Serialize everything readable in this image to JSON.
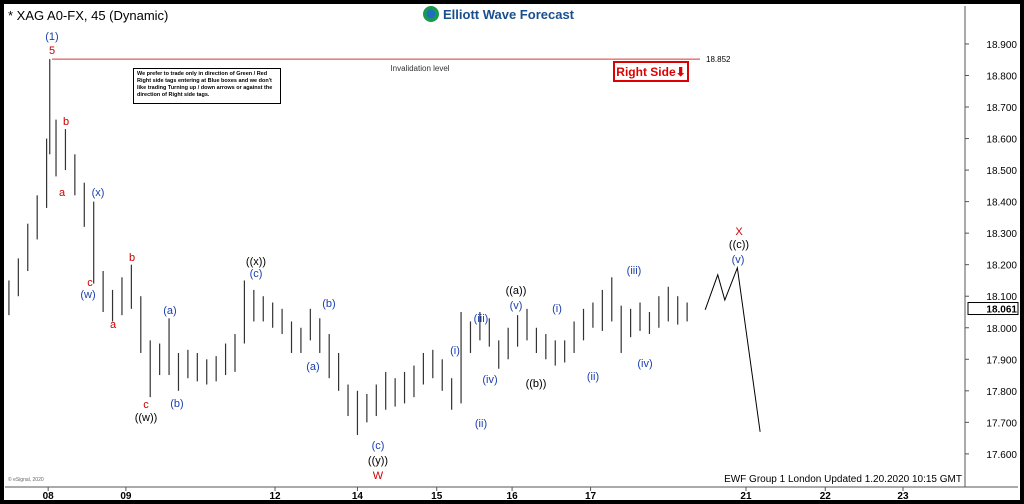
{
  "chart_data": {
    "type": "hilo",
    "title": "* XAG A0-FX, 45 (Dynamic)",
    "brand": "Elliott Wave Forecast",
    "footer": "EWF Group 1 London Updated 1.20.2020 10:15 GMT",
    "copyright": "© eSignal, 2020",
    "note": "We prefer to trade only in direction of Green / Red Right side tags entering at Blue boxes and we don't like trading Turning up / down arrows or against the direction of Right side tags.",
    "right_side_tag": "Right Side⬇",
    "invalidation": {
      "label": "Invalidation level",
      "value": 18.852,
      "value_label": "18.852"
    },
    "last_price": {
      "value": 18.061,
      "label": "18.061"
    },
    "xlim": [
      0.45,
      12.68
    ],
    "ylim": [
      17.495,
      19.014
    ],
    "xticks": [
      {
        "value": 1.0,
        "label": "08"
      },
      {
        "value": 1.99,
        "label": "09"
      },
      {
        "value": 3.89,
        "label": "12"
      },
      {
        "value": 4.94,
        "label": "14"
      },
      {
        "value": 5.95,
        "label": "15"
      },
      {
        "value": 6.91,
        "label": "16"
      },
      {
        "value": 7.91,
        "label": "17"
      },
      {
        "value": 9.89,
        "label": "21"
      },
      {
        "value": 10.9,
        "label": "22"
      },
      {
        "value": 11.89,
        "label": "23"
      }
    ],
    "yticks": [
      {
        "value": 17.6,
        "label": "17.600"
      },
      {
        "value": 17.7,
        "label": "17.700"
      },
      {
        "value": 17.8,
        "label": "17.800"
      },
      {
        "value": 17.9,
        "label": "17.900"
      },
      {
        "value": 18.0,
        "label": "18.000"
      },
      {
        "value": 18.1,
        "label": "18.100"
      },
      {
        "value": 18.2,
        "label": "18.200"
      },
      {
        "value": 18.3,
        "label": "18.300"
      },
      {
        "value": 18.4,
        "label": "18.400"
      },
      {
        "value": 18.5,
        "label": "18.500"
      },
      {
        "value": 18.6,
        "label": "18.600"
      },
      {
        "value": 18.7,
        "label": "18.700"
      },
      {
        "value": 18.8,
        "label": "18.800"
      },
      {
        "value": 18.9,
        "label": "18.900"
      }
    ],
    "series": [
      {
        "color": "#333333",
        "x": [
          0.5,
          0.62,
          0.74,
          0.86,
          0.98,
          1.02,
          1.1,
          1.22,
          1.34,
          1.46,
          1.58,
          1.7,
          1.82,
          1.94,
          2.06,
          2.18,
          2.3,
          2.42,
          2.54,
          2.66,
          2.78,
          2.9,
          3.02,
          3.14,
          3.26,
          3.38,
          3.5,
          3.62,
          3.74,
          3.86,
          3.98,
          4.1,
          4.22,
          4.34,
          4.46,
          4.58,
          4.7,
          4.82,
          4.94,
          5.06,
          5.18,
          5.3,
          5.42,
          5.54,
          5.66,
          5.78,
          5.9,
          6.02,
          6.14,
          6.26,
          6.38,
          6.5,
          6.62,
          6.74,
          6.86,
          6.98,
          7.1,
          7.22,
          7.34,
          7.46,
          7.58,
          7.7,
          7.82,
          7.94,
          8.06,
          8.18,
          8.3,
          8.42,
          8.54,
          8.66,
          8.78,
          8.9,
          9.02,
          9.14
        ],
        "high": [
          18.15,
          18.22,
          18.33,
          18.42,
          18.6,
          18.852,
          18.66,
          18.63,
          18.55,
          18.46,
          18.4,
          18.18,
          18.12,
          18.16,
          18.2,
          18.1,
          17.96,
          17.95,
          18.03,
          17.92,
          17.93,
          17.92,
          17.9,
          17.91,
          17.95,
          17.98,
          18.15,
          18.12,
          18.1,
          18.08,
          18.06,
          18.02,
          18.0,
          18.06,
          18.03,
          17.98,
          17.92,
          17.82,
          17.8,
          17.79,
          17.82,
          17.86,
          17.84,
          17.86,
          17.88,
          17.92,
          17.93,
          17.9,
          17.84,
          18.05,
          18.02,
          18.05,
          18.03,
          17.96,
          18.0,
          18.04,
          18.06,
          18.0,
          17.98,
          17.96,
          17.96,
          18.02,
          18.06,
          18.08,
          18.12,
          18.16,
          18.07,
          18.06,
          18.08,
          18.05,
          18.1,
          18.13,
          18.1,
          18.08
        ],
        "low": [
          18.04,
          18.1,
          18.18,
          18.28,
          18.38,
          18.55,
          18.48,
          18.5,
          18.42,
          18.32,
          18.14,
          18.05,
          18.02,
          18.04,
          18.06,
          17.92,
          17.78,
          17.85,
          17.85,
          17.8,
          17.84,
          17.83,
          17.82,
          17.83,
          17.85,
          17.86,
          17.95,
          18.02,
          18.02,
          18.0,
          17.98,
          17.92,
          17.92,
          17.96,
          17.92,
          17.84,
          17.8,
          17.72,
          17.66,
          17.7,
          17.72,
          17.74,
          17.75,
          17.76,
          17.78,
          17.82,
          17.84,
          17.8,
          17.74,
          17.76,
          17.92,
          17.96,
          17.94,
          17.87,
          17.9,
          17.94,
          17.96,
          17.92,
          17.9,
          17.88,
          17.89,
          17.92,
          17.96,
          18.0,
          17.99,
          18.02,
          17.92,
          17.97,
          17.99,
          17.98,
          18.0,
          18.02,
          18.01,
          18.02
        ]
      },
      {
        "type": "line",
        "color": "#000000",
        "x": [
          9.37,
          9.53,
          9.62,
          9.78,
          10.07
        ],
        "values": [
          18.057,
          18.168,
          18.088,
          18.19,
          17.67
        ]
      }
    ],
    "annotations": [
      "(1)",
      "5",
      "b",
      "a",
      "(x)",
      "c",
      "(w)",
      "a",
      "b",
      "(a)",
      "c",
      "((w))",
      "(b)",
      "((x))",
      "(c)",
      "(b)",
      "(a)",
      "(c)",
      "((y))",
      "W",
      "(i)",
      "(iii)",
      "(iv)",
      "(ii)",
      "((a))",
      "(v)",
      "((b))",
      "(i)",
      "(ii)",
      "(iii)",
      "(iv)",
      "X",
      "((c))",
      "(v)"
    ]
  }
}
